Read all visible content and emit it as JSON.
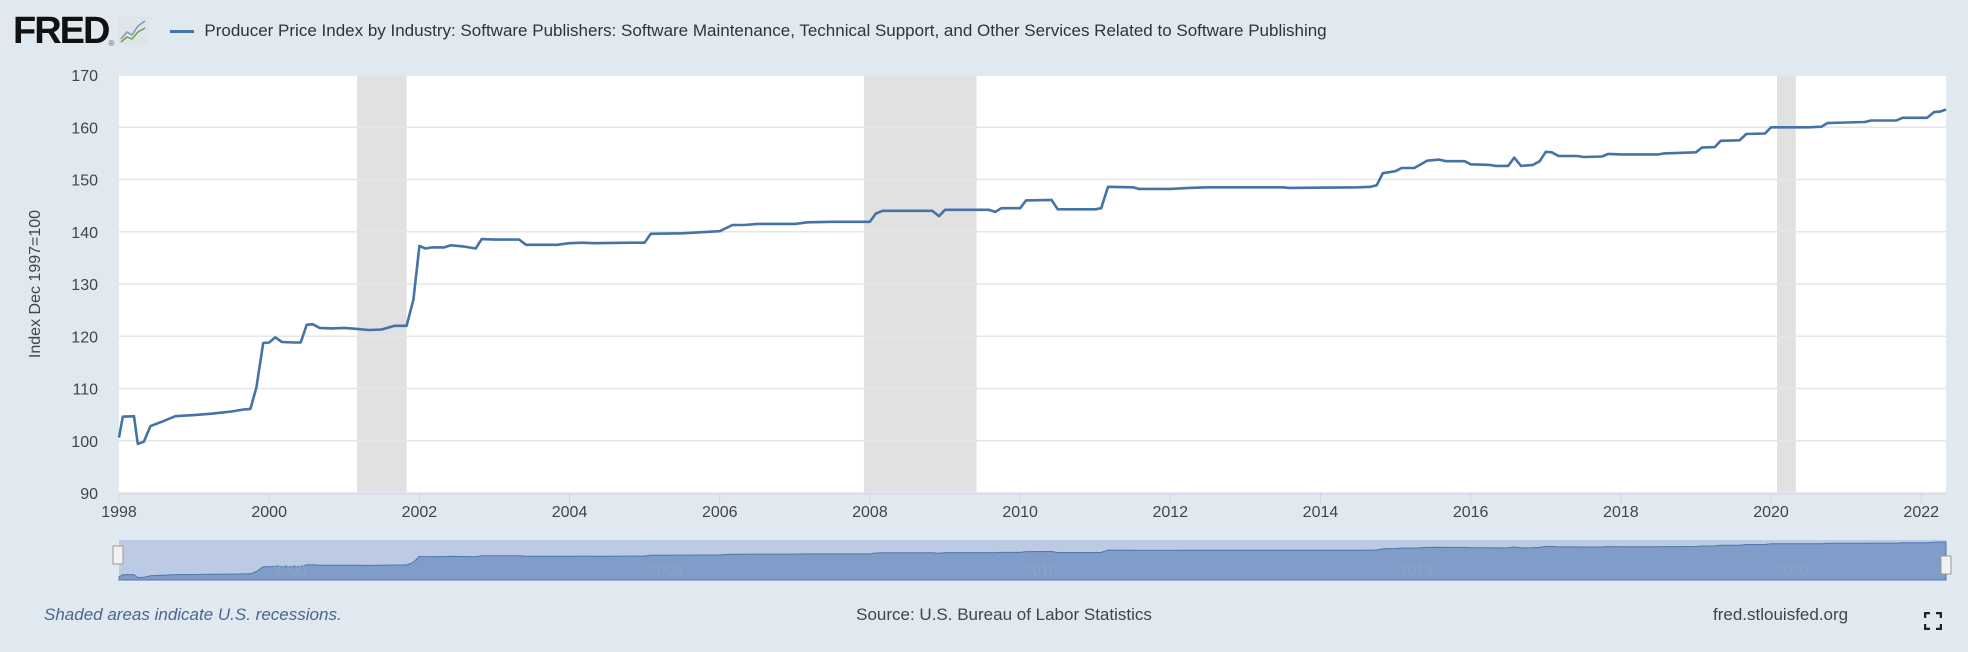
{
  "header": {
    "logo": "FRED",
    "title": "Producer Price Index by Industry: Software Publishers: Software Maintenance, Technical Support, and Other Services Related to Software Publishing"
  },
  "footer": {
    "note": "Shaded areas indicate U.S. recessions.",
    "source": "Source: U.S. Bureau of Labor Statistics",
    "site": "fred.stlouisfed.org"
  },
  "colors": {
    "line": "#4572a7",
    "recession": "#e1e1e1",
    "grid": "#e6e6e6",
    "background": "#e1e9f0",
    "nav_fill": "#7f9dc8",
    "nav_bg": "#bccbe3"
  },
  "chart_data": {
    "type": "line",
    "title": "Producer Price Index by Industry: Software Publishers: Software Maintenance, Technical Support, and Other Services Related to Software Publishing",
    "xlabel": "",
    "ylabel": "Index Dec 1997=100",
    "ylim": [
      90,
      170
    ],
    "xlim": [
      1998,
      2022.33
    ],
    "yticks": [
      90,
      100,
      110,
      120,
      130,
      140,
      150,
      160,
      170
    ],
    "xticks": [
      1998,
      2000,
      2002,
      2004,
      2006,
      2008,
      2010,
      2012,
      2014,
      2016,
      2018,
      2020,
      2022
    ],
    "navigator_labels": [
      2000,
      2005,
      2010,
      2015,
      2020
    ],
    "grid": true,
    "legend": "top-left",
    "recessions": [
      [
        2001.17,
        2001.83
      ],
      [
        2007.92,
        2009.42
      ],
      [
        2020.08,
        2020.33
      ]
    ],
    "series": [
      {
        "name": "Producer Price Index by Industry: Software Publishers: Software Maintenance, Technical Support, and Other Services Related to Software Publishing",
        "points": [
          [
            1998.0,
            100.6
          ],
          [
            1998.05,
            104.6
          ],
          [
            1998.2,
            104.7
          ],
          [
            1998.25,
            99.4
          ],
          [
            1998.33,
            99.8
          ],
          [
            1998.42,
            102.8
          ],
          [
            1998.58,
            103.7
          ],
          [
            1998.75,
            104.7
          ],
          [
            1999.0,
            104.9
          ],
          [
            1999.25,
            105.2
          ],
          [
            1999.5,
            105.6
          ],
          [
            1999.67,
            106.0
          ],
          [
            1999.75,
            106.1
          ],
          [
            1999.83,
            110.2
          ],
          [
            1999.92,
            118.7
          ],
          [
            2000.0,
            118.8
          ],
          [
            2000.08,
            119.8
          ],
          [
            2000.17,
            118.9
          ],
          [
            2000.33,
            118.8
          ],
          [
            2000.42,
            118.8
          ],
          [
            2000.5,
            122.2
          ],
          [
            2000.58,
            122.3
          ],
          [
            2000.67,
            121.6
          ],
          [
            2000.83,
            121.5
          ],
          [
            2001.0,
            121.6
          ],
          [
            2001.17,
            121.4
          ],
          [
            2001.33,
            121.2
          ],
          [
            2001.5,
            121.3
          ],
          [
            2001.67,
            122.0
          ],
          [
            2001.83,
            122.0
          ],
          [
            2001.92,
            127.0
          ],
          [
            2002.0,
            137.3
          ],
          [
            2002.08,
            136.8
          ],
          [
            2002.17,
            137.0
          ],
          [
            2002.33,
            137.0
          ],
          [
            2002.42,
            137.4
          ],
          [
            2002.58,
            137.2
          ],
          [
            2002.75,
            136.8
          ],
          [
            2002.83,
            138.6
          ],
          [
            2003.0,
            138.5
          ],
          [
            2003.33,
            138.5
          ],
          [
            2003.42,
            137.5
          ],
          [
            2003.83,
            137.5
          ],
          [
            2004.0,
            137.8
          ],
          [
            2004.17,
            137.9
          ],
          [
            2004.33,
            137.8
          ],
          [
            2004.83,
            137.9
          ],
          [
            2005.0,
            137.9
          ],
          [
            2005.08,
            139.6
          ],
          [
            2005.5,
            139.7
          ],
          [
            2006.0,
            140.1
          ],
          [
            2006.17,
            141.3
          ],
          [
            2006.33,
            141.3
          ],
          [
            2006.5,
            141.5
          ],
          [
            2007.0,
            141.5
          ],
          [
            2007.17,
            141.8
          ],
          [
            2007.5,
            141.9
          ],
          [
            2008.0,
            141.9
          ],
          [
            2008.08,
            143.5
          ],
          [
            2008.17,
            144.0
          ],
          [
            2008.83,
            144.0
          ],
          [
            2008.92,
            143.0
          ],
          [
            2009.0,
            144.2
          ],
          [
            2009.58,
            144.2
          ],
          [
            2009.67,
            143.8
          ],
          [
            2009.75,
            144.5
          ],
          [
            2010.0,
            144.5
          ],
          [
            2010.08,
            146.0
          ],
          [
            2010.42,
            146.1
          ],
          [
            2010.5,
            144.3
          ],
          [
            2011.0,
            144.3
          ],
          [
            2011.08,
            144.5
          ],
          [
            2011.17,
            148.6
          ],
          [
            2011.5,
            148.5
          ],
          [
            2011.58,
            148.2
          ],
          [
            2012.0,
            148.2
          ],
          [
            2012.25,
            148.4
          ],
          [
            2012.5,
            148.5
          ],
          [
            2013.5,
            148.5
          ],
          [
            2013.58,
            148.4
          ],
          [
            2014.5,
            148.5
          ],
          [
            2014.67,
            148.6
          ],
          [
            2014.75,
            148.9
          ],
          [
            2014.83,
            151.2
          ],
          [
            2015.0,
            151.6
          ],
          [
            2015.08,
            152.2
          ],
          [
            2015.25,
            152.2
          ],
          [
            2015.42,
            153.6
          ],
          [
            2015.58,
            153.8
          ],
          [
            2015.67,
            153.5
          ],
          [
            2015.92,
            153.5
          ],
          [
            2016.0,
            152.9
          ],
          [
            2016.25,
            152.8
          ],
          [
            2016.33,
            152.6
          ],
          [
            2016.5,
            152.6
          ],
          [
            2016.58,
            154.2
          ],
          [
            2016.67,
            152.6
          ],
          [
            2016.83,
            152.8
          ],
          [
            2016.92,
            153.5
          ],
          [
            2017.0,
            155.3
          ],
          [
            2017.08,
            155.2
          ],
          [
            2017.17,
            154.5
          ],
          [
            2017.42,
            154.5
          ],
          [
            2017.5,
            154.3
          ],
          [
            2017.75,
            154.4
          ],
          [
            2017.83,
            154.9
          ],
          [
            2018.0,
            154.8
          ],
          [
            2018.5,
            154.8
          ],
          [
            2018.58,
            155.0
          ],
          [
            2019.0,
            155.2
          ],
          [
            2019.08,
            156.1
          ],
          [
            2019.25,
            156.2
          ],
          [
            2019.33,
            157.4
          ],
          [
            2019.58,
            157.5
          ],
          [
            2019.67,
            158.7
          ],
          [
            2019.92,
            158.8
          ],
          [
            2020.0,
            160.0
          ],
          [
            2020.5,
            160.0
          ],
          [
            2020.67,
            160.1
          ],
          [
            2020.75,
            160.8
          ],
          [
            2021.0,
            160.9
          ],
          [
            2021.25,
            161.0
          ],
          [
            2021.33,
            161.3
          ],
          [
            2021.67,
            161.3
          ],
          [
            2021.75,
            161.8
          ],
          [
            2022.08,
            161.8
          ],
          [
            2022.17,
            162.9
          ],
          [
            2022.25,
            163.0
          ],
          [
            2022.33,
            163.4
          ]
        ]
      }
    ]
  }
}
